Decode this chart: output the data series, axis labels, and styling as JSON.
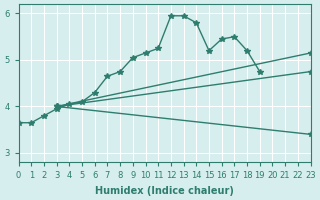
{
  "xlabel": "Humidex (Indice chaleur)",
  "ylabel": "",
  "background_color": "#d6eeee",
  "grid_color": "#ffffff",
  "line_color": "#2e7d6e",
  "xlim": [
    0,
    23
  ],
  "ylim": [
    2.8,
    6.2
  ],
  "xticks": [
    0,
    1,
    2,
    3,
    4,
    5,
    6,
    7,
    8,
    9,
    10,
    11,
    12,
    13,
    14,
    15,
    16,
    17,
    18,
    19,
    20,
    21,
    22,
    23
  ],
  "yticks": [
    3,
    4,
    5,
    6
  ],
  "series": [
    {
      "x": [
        0,
        1,
        2,
        3,
        4,
        5,
        6,
        7,
        8,
        9,
        10,
        11,
        12,
        13,
        14,
        15,
        16,
        17,
        18,
        19
      ],
      "y": [
        3.65,
        3.65,
        3.8,
        3.95,
        4.05,
        4.1,
        4.3,
        4.65,
        4.75,
        5.05,
        5.15,
        5.25,
        5.95,
        5.95,
        5.8,
        5.2,
        5.45,
        5.5,
        5.2,
        4.75
      ]
    },
    {
      "x": [
        3,
        23
      ],
      "y": [
        4.0,
        5.15
      ]
    },
    {
      "x": [
        3,
        23
      ],
      "y": [
        4.0,
        4.75
      ]
    },
    {
      "x": [
        3,
        23
      ],
      "y": [
        4.0,
        3.4
      ]
    }
  ]
}
